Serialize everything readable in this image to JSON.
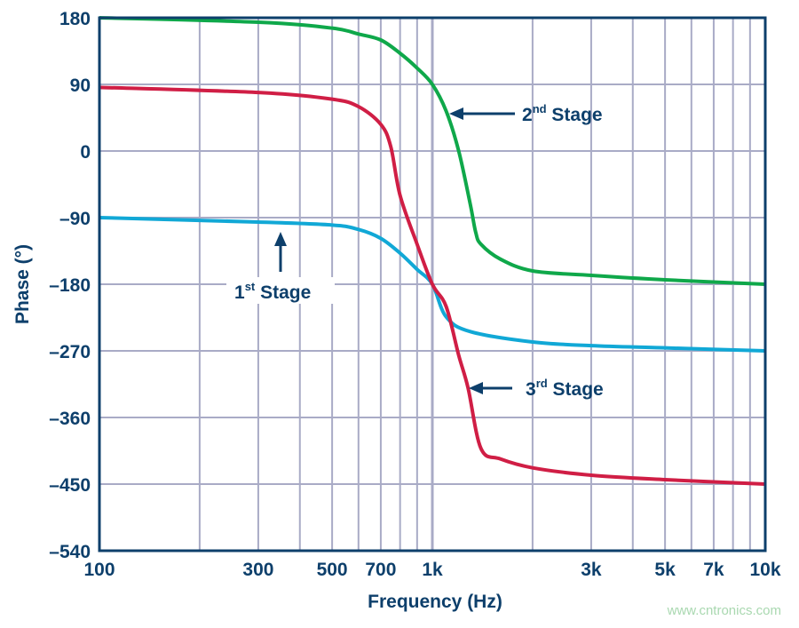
{
  "chart_data": {
    "type": "line",
    "title": "",
    "xlabel": "Frequency (Hz)",
    "ylabel": "Phase (°)",
    "xscale": "log",
    "xlim": [
      100,
      10000
    ],
    "ylim": [
      -540,
      180
    ],
    "grid": true,
    "x_ticks": [
      100,
      300,
      500,
      700,
      1000,
      3000,
      5000,
      7000,
      10000
    ],
    "x_tick_labels": [
      "100",
      "300",
      "500",
      "700",
      "1k",
      "3k",
      "5k",
      "7k",
      "10k"
    ],
    "y_ticks": [
      180,
      90,
      0,
      -90,
      -180,
      -270,
      -360,
      -450,
      -540
    ],
    "y_tick_labels": [
      "180",
      "90",
      "0",
      "–90",
      "–180",
      "–270",
      "–360",
      "–450",
      "–540"
    ],
    "series": [
      {
        "name": "1st Stage",
        "color": "#11a8d6",
        "x": [
          100,
          300,
          500,
          600,
          700,
          800,
          900,
          1000,
          1100,
          1300,
          2000,
          3000,
          5000,
          10000
        ],
        "y": [
          -90,
          -96,
          -100,
          -106,
          -118,
          -138,
          -160,
          -180,
          -224,
          -244,
          -258,
          -263,
          -266,
          -270
        ]
      },
      {
        "name": "2nd Stage",
        "color": "#0fa84a",
        "x": [
          100,
          300,
          500,
          600,
          700,
          800,
          900,
          1000,
          1100,
          1200,
          1300,
          1350,
          1400,
          1600,
          2000,
          3000,
          5000,
          10000
        ],
        "y": [
          180,
          174,
          166,
          158,
          150,
          132,
          112,
          90,
          54,
          0,
          -72,
          -110,
          -126,
          -146,
          -162,
          -168,
          -174,
          -180
        ]
      },
      {
        "name": "3rd Stage",
        "color": "#d01e45",
        "x": [
          100,
          300,
          500,
          600,
          700,
          750,
          800,
          900,
          1000,
          1100,
          1200,
          1280,
          1400,
          1600,
          2000,
          3000,
          5000,
          10000
        ],
        "y": [
          86,
          79,
          70,
          60,
          36,
          6,
          -60,
          -126,
          -180,
          -210,
          -276,
          -320,
          -402,
          -416,
          -428,
          -438,
          -444,
          -450
        ]
      }
    ],
    "annotations": [
      {
        "text": "1st Stage",
        "base": "1",
        "sup": "st",
        "rest": " Stage"
      },
      {
        "text": "2nd Stage",
        "base": "2",
        "sup": "nd",
        "rest": " Stage"
      },
      {
        "text": "3rd Stage",
        "base": "3",
        "sup": "rd",
        "rest": " Stage"
      }
    ],
    "colors": {
      "axis": "#0d3f6b",
      "grid": "#a9abc6",
      "text": "#0d3f6b"
    }
  },
  "watermark": "www.cntronics.com"
}
